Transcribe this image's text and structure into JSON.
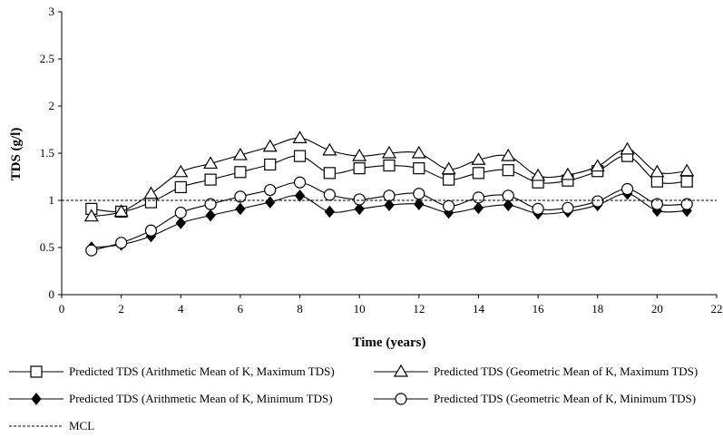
{
  "chart_data": {
    "type": "line",
    "title": "",
    "xlabel": "Time (years)",
    "ylabel": "TDS (g/l)",
    "xlim": [
      0,
      22
    ],
    "ylim": [
      0,
      3
    ],
    "x_ticks": [
      "0",
      "2",
      "4",
      "6",
      "8",
      "10",
      "12",
      "14",
      "16",
      "18",
      "20",
      "22"
    ],
    "y_ticks": [
      "0",
      "0.5",
      "1",
      "1.5",
      "2",
      "2.5",
      "3"
    ],
    "grid": false,
    "x": [
      1,
      2,
      3,
      4,
      5,
      6,
      7,
      8,
      9,
      10,
      11,
      12,
      13,
      14,
      15,
      16,
      17,
      18,
      19,
      20,
      21
    ],
    "series": [
      {
        "name": "Predicted TDS (Arithmetic Mean of K, Maximum TDS)",
        "marker": "square",
        "values": [
          0.91,
          0.88,
          0.98,
          1.14,
          1.22,
          1.3,
          1.38,
          1.47,
          1.29,
          1.34,
          1.37,
          1.34,
          1.22,
          1.29,
          1.32,
          1.19,
          1.21,
          1.31,
          1.47,
          1.2,
          1.2
        ]
      },
      {
        "name": "Predicted TDS (Geometric Mean of K, Maximum TDS)",
        "marker": "triangle",
        "values": [
          0.83,
          0.88,
          1.07,
          1.3,
          1.39,
          1.48,
          1.57,
          1.66,
          1.53,
          1.47,
          1.5,
          1.5,
          1.33,
          1.43,
          1.47,
          1.26,
          1.27,
          1.36,
          1.54,
          1.3,
          1.31
        ]
      },
      {
        "name": "Predicted TDS (Arithmetic Mean of K, Minimum TDS)",
        "marker": "diamond",
        "values": [
          0.5,
          0.53,
          0.62,
          0.76,
          0.84,
          0.91,
          0.98,
          1.05,
          0.88,
          0.91,
          0.95,
          0.96,
          0.87,
          0.92,
          0.95,
          0.86,
          0.88,
          0.95,
          1.07,
          0.89,
          0.89
        ]
      },
      {
        "name": "Predicted TDS (Geometric Mean of K, Minimum TDS)",
        "marker": "circle",
        "values": [
          0.47,
          0.55,
          0.68,
          0.87,
          0.96,
          1.04,
          1.11,
          1.19,
          1.06,
          1.01,
          1.05,
          1.07,
          0.94,
          1.03,
          1.05,
          0.91,
          0.92,
          0.99,
          1.12,
          0.96,
          0.96
        ]
      },
      {
        "name": "MCL",
        "marker": "none",
        "style": "dashed",
        "values": [
          1.0,
          1.0
        ],
        "x": [
          0,
          22
        ]
      }
    ],
    "legend_position": "bottom"
  }
}
